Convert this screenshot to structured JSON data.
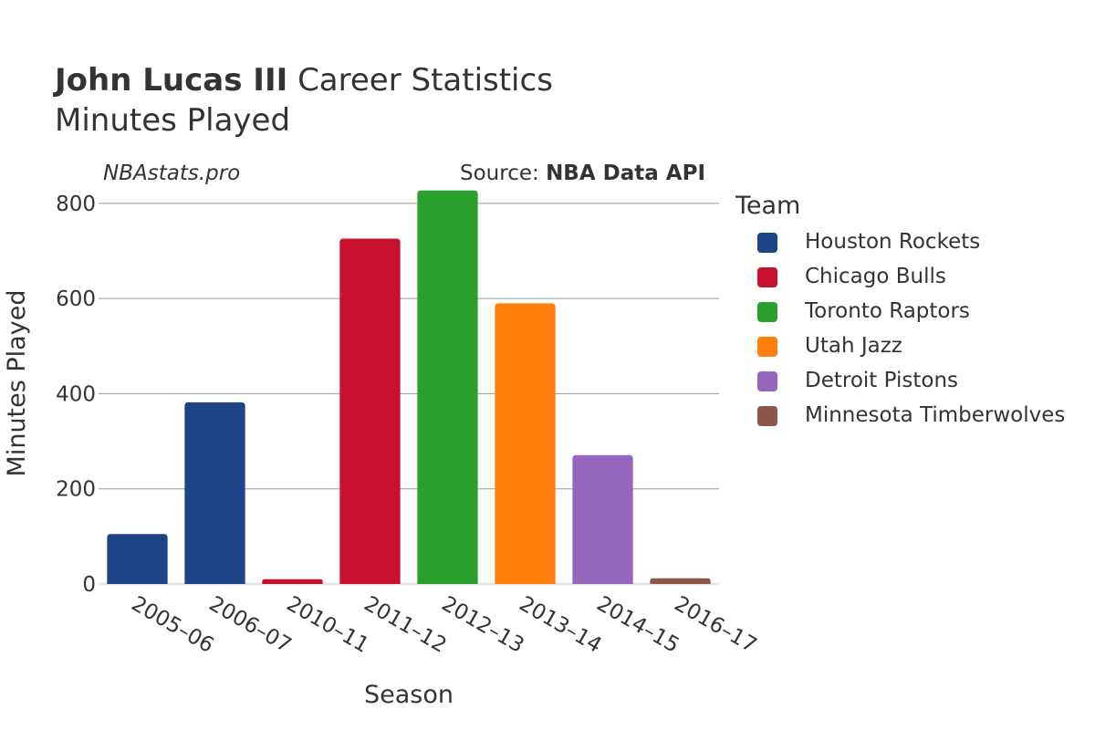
{
  "header": {
    "title_bold": "John Lucas III",
    "title_rest": "Career Statistics",
    "subtitle": "Minutes Played",
    "brand": "NBAstats.pro",
    "source_prefix": "Source: ",
    "source_name": "NBA Data API"
  },
  "legend": {
    "title": "Team",
    "items": [
      {
        "label": "Houston Rockets",
        "color": "#1f4387"
      },
      {
        "label": "Chicago Bulls",
        "color": "#c8102e"
      },
      {
        "label": "Toronto Raptors",
        "color": "#2ca02c"
      },
      {
        "label": "Utah Jazz",
        "color": "#ff7f0e"
      },
      {
        "label": "Detroit Pistons",
        "color": "#9467bd"
      },
      {
        "label": "Minnesota Timberwolves",
        "color": "#8c564b"
      }
    ]
  },
  "chart_data": {
    "type": "bar",
    "xlabel": "Season",
    "ylabel": "Minutes Played",
    "ylim": [
      0,
      840
    ],
    "yticks": [
      0,
      200,
      400,
      600,
      800
    ],
    "grid": true,
    "legend_position": "right",
    "categories": [
      "2005–06",
      "2006–07",
      "2010–11",
      "2011–12",
      "2012–13",
      "2013–14",
      "2014–15",
      "2016–17"
    ],
    "values": [
      105,
      382,
      10,
      726,
      827,
      590,
      271,
      12
    ],
    "teams": [
      "Houston Rockets",
      "Houston Rockets",
      "Chicago Bulls",
      "Chicago Bulls",
      "Toronto Raptors",
      "Utah Jazz",
      "Detroit Pistons",
      "Minnesota Timberwolves"
    ]
  }
}
